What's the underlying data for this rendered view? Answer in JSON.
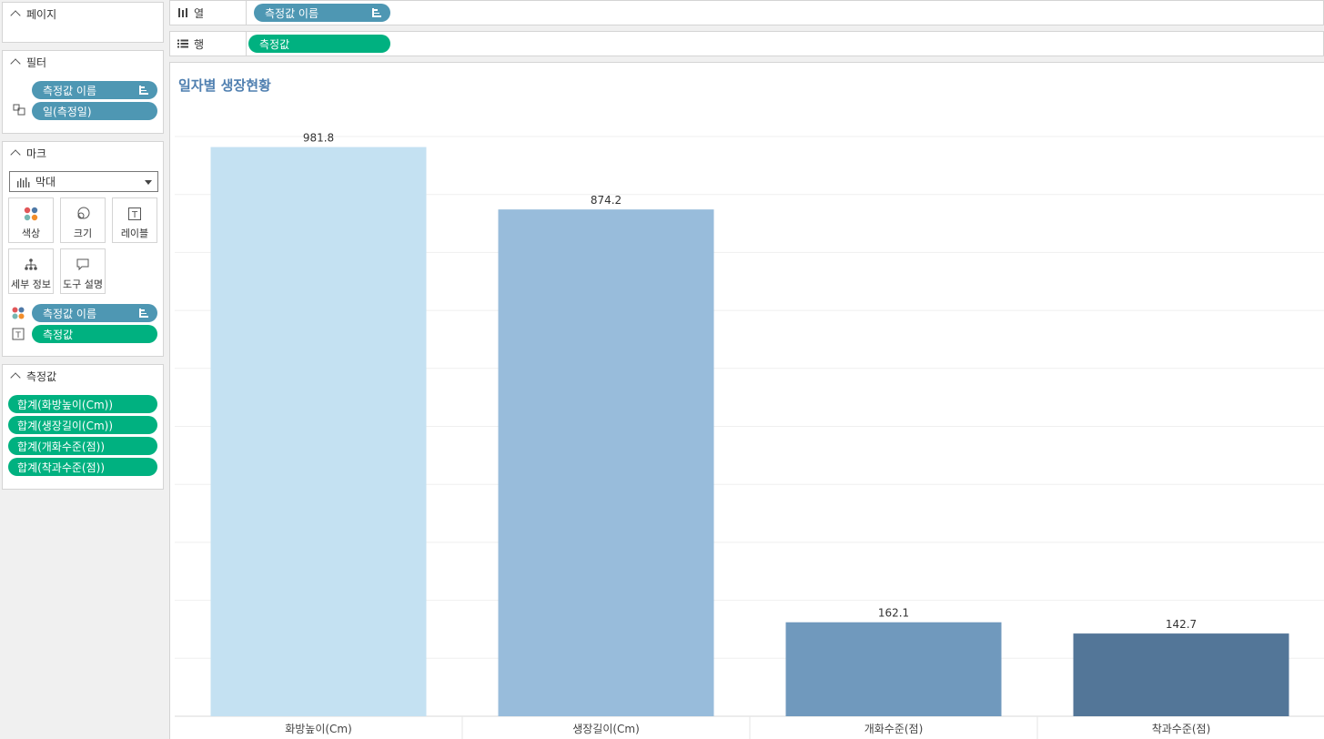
{
  "pages_panel": {
    "title": "페이지"
  },
  "filters_panel": {
    "title": "필터",
    "pills": [
      "측정값 이름",
      "일(측정일)"
    ]
  },
  "marks_panel": {
    "title": "마크",
    "mark_type": "막대",
    "buttons": [
      "색상",
      "크기",
      "레이블",
      "세부 정보",
      "도구 설명"
    ],
    "assigned": [
      {
        "role": "color",
        "label": "측정값 이름"
      },
      {
        "role": "label",
        "label": "측정값"
      }
    ]
  },
  "measures_panel": {
    "title": "측정값",
    "items": [
      "합계(화방높이(Cm))",
      "합계(생장길이(Cm))",
      "합계(개화수준(점))",
      "합계(착과수준(점))"
    ]
  },
  "columns_shelf": {
    "label": "열",
    "pill": "측정값 이름"
  },
  "rows_shelf": {
    "label": "행",
    "pill": "측정값"
  },
  "colors": {
    "blue_pill": "#4e97b3",
    "green_pill": "#00b180",
    "title": "#4f7fb0"
  },
  "chart_data": {
    "type": "bar",
    "title": "일자별 생장현황",
    "categories": [
      "화방높이(Cm)",
      "생장길이(Cm)",
      "개화수준(점)",
      "착과수준(점)"
    ],
    "values": [
      981.8,
      874.2,
      162.1,
      142.7
    ],
    "data_labels": [
      "981.8",
      "874.2",
      "162.1",
      "142.7"
    ],
    "colors": [
      "#c4e1f2",
      "#98bcdb",
      "#7099bd",
      "#537698"
    ],
    "ylim": [
      0,
      1000
    ],
    "grid": true,
    "y_axis_visible": false
  }
}
